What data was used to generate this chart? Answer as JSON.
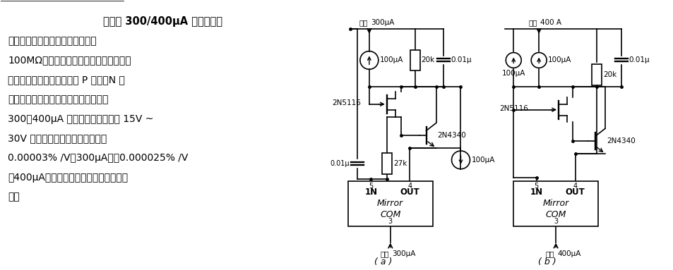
{
  "bg_color": "#ffffff",
  "text_color": "#000000",
  "title": "高精度 300/400μA 浮置电流源",
  "body_lines": [
    "上一条浮置电流源的动态电阴小于",
    "100MΩ，当电流源两端电压变动时，会引",
    "起电流的微弱变化。若增加 P 沟道、N 沟",
    "道场效应管各一只，可以组成高精度的",
    "300、400μA 浮置电流源。电压在 15V ~",
    "30V 范围变化时，电压调整率高达",
    "0.00003% /V（300μA），0.000025% /V",
    "（400μA）。用于要求高精度电流源的场",
    "合。"
  ],
  "lw": 1.2
}
